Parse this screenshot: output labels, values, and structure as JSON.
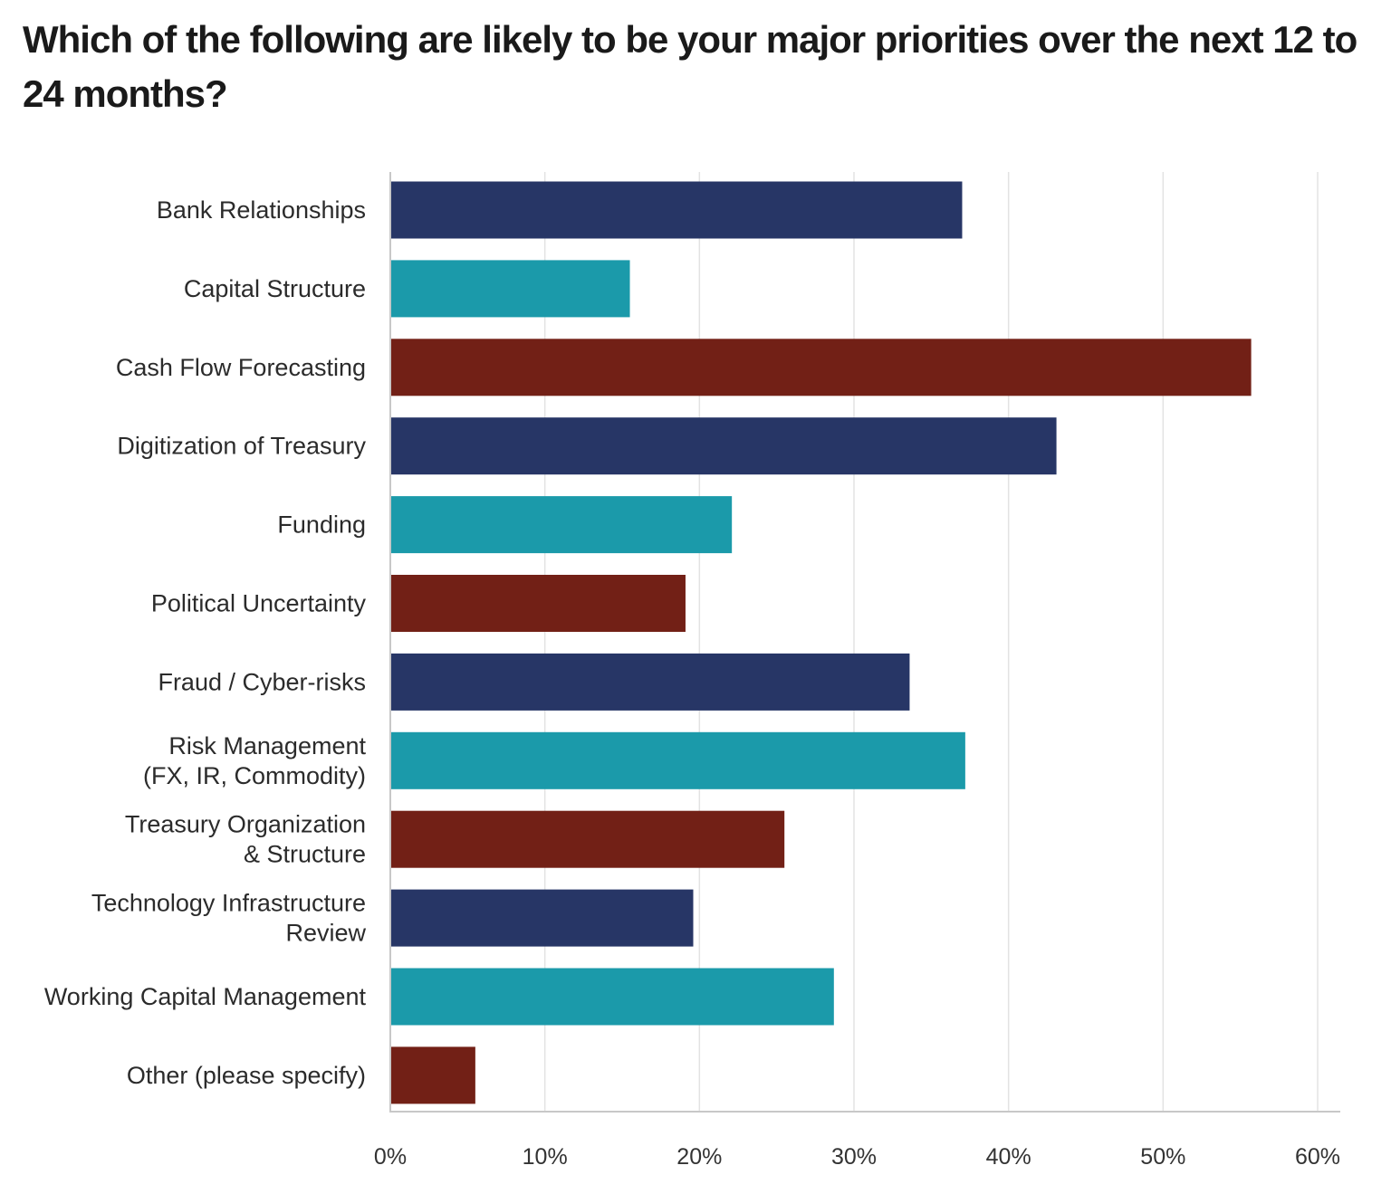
{
  "chart_data": {
    "type": "bar",
    "orientation": "horizontal",
    "title": "Which of the following are likely to be your major priorities over the next 12 to 24 months?",
    "categories": [
      [
        "Bank Relationships"
      ],
      [
        "Capital Structure"
      ],
      [
        "Cash Flow Forecasting"
      ],
      [
        "Digitization of Treasury"
      ],
      [
        "Funding"
      ],
      [
        "Political Uncertainty"
      ],
      [
        "Fraud / Cyber-risks"
      ],
      [
        "Risk Management",
        "(FX, IR, Commodity)"
      ],
      [
        "Treasury Organization",
        "& Structure"
      ],
      [
        "Technology Infrastructure",
        "Review"
      ],
      [
        "Working Capital Management"
      ],
      [
        "Other (please specify)"
      ]
    ],
    "values": [
      37.0,
      15.5,
      55.7,
      43.1,
      22.1,
      19.1,
      33.6,
      37.2,
      25.5,
      19.6,
      28.7,
      5.5
    ],
    "bar_colors": [
      "#273666",
      "#1b9aaa",
      "#722016",
      "#273666",
      "#1b9aaa",
      "#722016",
      "#273666",
      "#1b9aaa",
      "#722016",
      "#273666",
      "#1b9aaa",
      "#722016"
    ],
    "xlim": [
      0,
      60
    ],
    "x_ticks": [
      0,
      10,
      20,
      30,
      40,
      50,
      60
    ],
    "x_tick_labels": [
      "0%",
      "10%",
      "20%",
      "30%",
      "40%",
      "50%",
      "60%"
    ],
    "xlabel": "",
    "ylabel": "",
    "grid": "vertical",
    "legend": "none"
  }
}
